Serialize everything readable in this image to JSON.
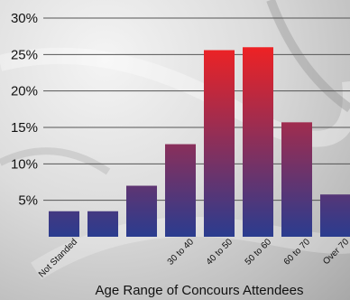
{
  "colors": {
    "bar_top": "#ee2224",
    "bar_bottom": "#2a3c8f",
    "gridline": "#555555",
    "text": "#111111"
  },
  "chart_data": {
    "type": "bar",
    "categories": [
      "Not Standed",
      "",
      "",
      "30 to 40",
      "40 to 50",
      "50 to 60",
      "60 to 70",
      "Over 70"
    ],
    "values": [
      3.5,
      3.5,
      7,
      12.7,
      25.6,
      26,
      15.7,
      5.8
    ],
    "yticks": [
      "5%",
      "10%",
      "15%",
      "20%",
      "25%",
      "30%"
    ],
    "ylim": [
      0,
      30
    ],
    "xlabel": "Age Range of Concours Attendees",
    "ylabel": "",
    "title": "",
    "grid": true,
    "legend": "none"
  }
}
